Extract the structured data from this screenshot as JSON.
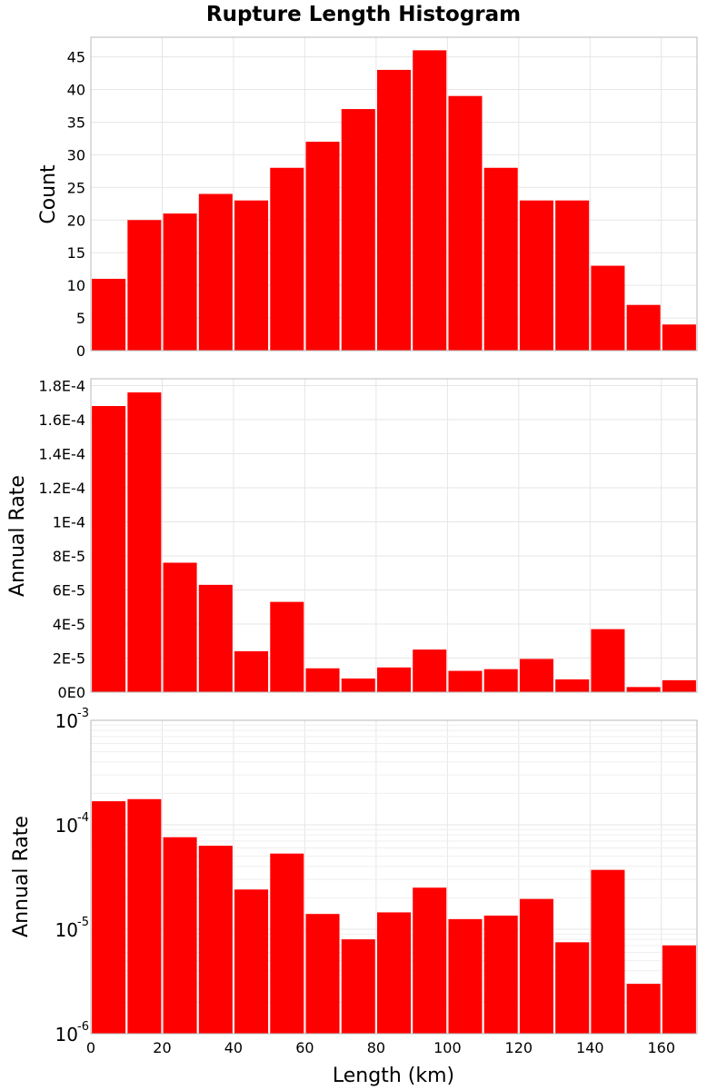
{
  "chart_data": [
    {
      "type": "bar",
      "title": "Rupture Length Histogram",
      "ylabel": "Count",
      "xlabel": "",
      "bin_width": 10,
      "x_centers": [
        5,
        15,
        25,
        35,
        45,
        55,
        65,
        75,
        85,
        95,
        105,
        115,
        125,
        135,
        145,
        155,
        165
      ],
      "values": [
        11,
        20,
        21,
        24,
        23,
        28,
        32,
        37,
        43,
        46,
        39,
        28,
        23,
        23,
        13,
        7,
        4
      ],
      "xlim": [
        0,
        170
      ],
      "ylim": [
        0,
        48
      ],
      "yticks": [
        0,
        5,
        10,
        15,
        20,
        25,
        30,
        35,
        40,
        45
      ],
      "ytick_labels": [
        "0",
        "5",
        "10",
        "15",
        "20",
        "25",
        "30",
        "35",
        "40",
        "45"
      ],
      "yscale": "linear",
      "grid": true,
      "color": "#ff0000"
    },
    {
      "type": "bar",
      "ylabel": "Annual Rate",
      "xlabel": "",
      "bin_width": 10,
      "x_centers": [
        5,
        15,
        25,
        35,
        45,
        55,
        65,
        75,
        85,
        95,
        105,
        115,
        125,
        135,
        145,
        155,
        165
      ],
      "values": [
        0.000168,
        0.000176,
        7.6e-05,
        6.3e-05,
        2.4e-05,
        5.3e-05,
        1.4e-05,
        8e-06,
        1.45e-05,
        2.5e-05,
        1.25e-05,
        1.35e-05,
        1.95e-05,
        7.5e-06,
        3.7e-05,
        3e-06,
        7e-06
      ],
      "xlim": [
        0,
        170
      ],
      "ylim": [
        0,
        0.000184
      ],
      "yticks": [
        0,
        2e-05,
        4e-05,
        6e-05,
        8e-05,
        0.0001,
        0.00012,
        0.00014,
        0.00016,
        0.00018
      ],
      "ytick_labels": [
        "0E0",
        "2E-5",
        "4E-5",
        "6E-5",
        "8E-5",
        "1E-4",
        "1.2E-4",
        "1.4E-4",
        "1.6E-4",
        "1.8E-4"
      ],
      "yscale": "linear",
      "grid": true,
      "color": "#ff0000"
    },
    {
      "type": "bar",
      "ylabel": "Annual Rate",
      "xlabel": "Length (km)",
      "bin_width": 10,
      "x_centers": [
        5,
        15,
        25,
        35,
        45,
        55,
        65,
        75,
        85,
        95,
        105,
        115,
        125,
        135,
        145,
        155,
        165
      ],
      "values": [
        0.000168,
        0.000176,
        7.6e-05,
        6.3e-05,
        2.4e-05,
        5.3e-05,
        1.4e-05,
        8e-06,
        1.45e-05,
        2.5e-05,
        1.25e-05,
        1.35e-05,
        1.95e-05,
        7.5e-06,
        3.7e-05,
        3e-06,
        7e-06
      ],
      "xlim": [
        0,
        170
      ],
      "ylim": [
        1e-06,
        0.001
      ],
      "yscale": "log",
      "yticks": [
        1e-06,
        1e-05,
        0.0001,
        0.001
      ],
      "ytick_labels": [
        {
          "base": "10",
          "exp": "-6"
        },
        {
          "base": "10",
          "exp": "-5"
        },
        {
          "base": "10",
          "exp": "-4"
        },
        {
          "base": "10",
          "exp": "-3"
        }
      ],
      "xticks": [
        0,
        20,
        40,
        60,
        80,
        100,
        120,
        140,
        160
      ],
      "xtick_labels": [
        "0",
        "20",
        "40",
        "60",
        "80",
        "100",
        "120",
        "140",
        "160"
      ],
      "grid": true,
      "color": "#ff0000"
    }
  ]
}
